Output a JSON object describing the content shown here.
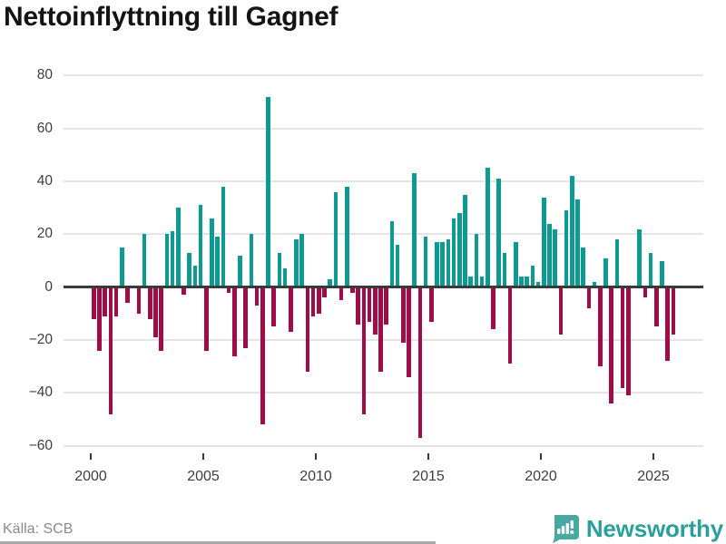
{
  "title": "Nettoinflyttning till Gagnef",
  "source": "Källa: SCB",
  "brand": {
    "name": "Newsworthy",
    "icon": "newsworthy-speech-bubble-barchart-icon"
  },
  "colors": {
    "positive": "#0d9a92",
    "negative": "#a00c47",
    "grid": "#e4e4e4",
    "axis": "#3a3a3a",
    "tick_text": "#3d3d3d",
    "muted_text": "#8a8a8a",
    "brand_teal": "#2ba09a",
    "brand_icon_teal": "#47a9a2"
  },
  "chart_data": {
    "type": "bar",
    "title": "Nettoinflyttning till Gagnef",
    "xlabel": "",
    "ylabel": "",
    "ylim": [
      -67,
      88
    ],
    "grid": true,
    "legend": "none",
    "y_ticks": [
      80,
      60,
      40,
      20,
      0,
      -20,
      -40,
      -60
    ],
    "y_tick_labels": [
      "80",
      "60",
      "40",
      "20",
      "0",
      "−20",
      "−40",
      "−60"
    ],
    "x_ticks": [
      2000,
      2005,
      2010,
      2015,
      2020,
      2025
    ],
    "x_tick_labels": [
      "2000",
      "2005",
      "2010",
      "2015",
      "2020",
      "2025"
    ],
    "categories": [
      "2000 Q1",
      "2000 Q2",
      "2000 Q3",
      "2000 Q4",
      "2001 Q1",
      "2001 Q2",
      "2001 Q3",
      "2001 Q4",
      "2002 Q1",
      "2002 Q2",
      "2002 Q3",
      "2002 Q4",
      "2003 Q1",
      "2003 Q2",
      "2003 Q3",
      "2003 Q4",
      "2004 Q1",
      "2004 Q2",
      "2004 Q3",
      "2004 Q4",
      "2005 Q1",
      "2005 Q2",
      "2005 Q3",
      "2005 Q4",
      "2006 Q1",
      "2006 Q2",
      "2006 Q3",
      "2006 Q4",
      "2007 Q1",
      "2007 Q2",
      "2007 Q3",
      "2007 Q4",
      "2008 Q1",
      "2008 Q2",
      "2008 Q3",
      "2008 Q4",
      "2009 Q1",
      "2009 Q2",
      "2009 Q3",
      "2009 Q4",
      "2010 Q1",
      "2010 Q2",
      "2010 Q3",
      "2010 Q4",
      "2011 Q1",
      "2011 Q2",
      "2011 Q3",
      "2011 Q4",
      "2012 Q1",
      "2012 Q2",
      "2012 Q3",
      "2012 Q4",
      "2013 Q1",
      "2013 Q2",
      "2013 Q3",
      "2013 Q4",
      "2014 Q1",
      "2014 Q2",
      "2014 Q3",
      "2014 Q4",
      "2015 Q1",
      "2015 Q2",
      "2015 Q3",
      "2015 Q4",
      "2016 Q1",
      "2016 Q2",
      "2016 Q3",
      "2016 Q4",
      "2017 Q1",
      "2017 Q2",
      "2017 Q3",
      "2017 Q4",
      "2018 Q1",
      "2018 Q2",
      "2018 Q3",
      "2018 Q4",
      "2019 Q1",
      "2019 Q2",
      "2019 Q3",
      "2019 Q4",
      "2020 Q1",
      "2020 Q2",
      "2020 Q3",
      "2020 Q4",
      "2021 Q1",
      "2021 Q2",
      "2021 Q3",
      "2021 Q4",
      "2022 Q1",
      "2022 Q2",
      "2022 Q3",
      "2022 Q4",
      "2023 Q1",
      "2023 Q2",
      "2023 Q3",
      "2023 Q4",
      "2024 Q1",
      "2024 Q2",
      "2024 Q3",
      "2024 Q4",
      "2025 Q1",
      "2025 Q2",
      "2025 Q3",
      "2025 Q4"
    ],
    "values": [
      -12,
      -24,
      -11,
      -48,
      -11,
      15,
      -6,
      0,
      -10,
      20,
      -12,
      -19,
      -24,
      20,
      21,
      30,
      -3,
      13,
      8,
      31,
      -24,
      26,
      19,
      38,
      -2,
      -26,
      12,
      -23,
      20,
      -7,
      -52,
      72,
      -15,
      13,
      7,
      -17,
      18,
      20,
      -32,
      -11,
      -10,
      -4,
      3,
      36,
      -5,
      38,
      -2,
      -14,
      -48,
      -13,
      -18,
      -32,
      -14,
      25,
      16,
      -21,
      -34,
      43,
      -57,
      19,
      -13,
      17,
      17,
      18,
      26,
      28,
      35,
      4,
      20,
      4,
      45,
      -16,
      41,
      13,
      -29,
      17,
      4,
      4,
      8,
      2,
      34,
      24,
      22,
      -18,
      29,
      42,
      33,
      15,
      -8,
      2,
      -30,
      11,
      -44,
      18,
      -38,
      -41,
      0,
      22,
      -4,
      13,
      -15,
      10,
      -28,
      -18
    ]
  }
}
